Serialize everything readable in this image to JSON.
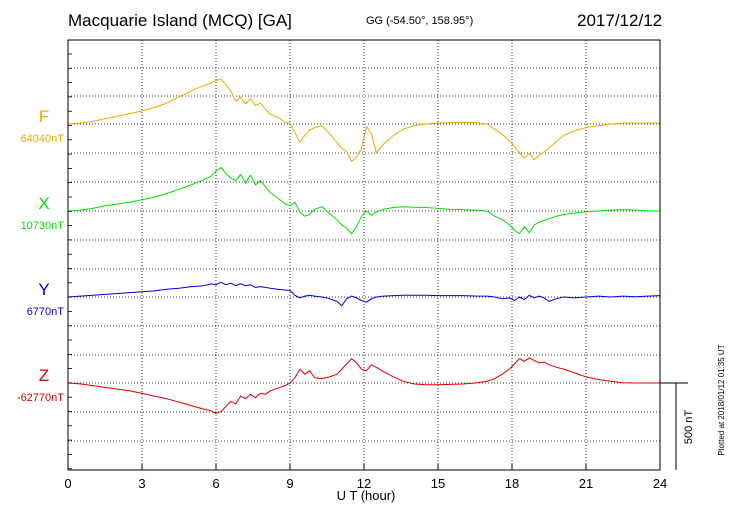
{
  "header": {
    "station": "Macquarie Island (MCQ)  [GA]",
    "coords": "GG (-54.50°, 158.95°)",
    "date": "2017/12/12"
  },
  "footer_note": "Plotted at 2018/01/12 01:35 UT",
  "scale_label": "500 nT",
  "chart_data": {
    "type": "line",
    "xlabel": "U T (hour)",
    "xlim": [
      0,
      24
    ],
    "xticks": [
      0,
      3,
      6,
      9,
      12,
      15,
      18,
      21,
      24
    ],
    "grid": true,
    "scale_bar_nT": 500,
    "series": [
      {
        "name": "F",
        "baseline_label": "64040nT",
        "baseline": 64040,
        "color": "#f0a800",
        "x": [
          0,
          0.5,
          1,
          1.5,
          2,
          2.5,
          3,
          3.5,
          4,
          4.5,
          5,
          5.5,
          5.8,
          6,
          6.2,
          6.4,
          6.6,
          6.8,
          7,
          7.2,
          7.4,
          7.6,
          7.8,
          8,
          8.2,
          8.5,
          8.8,
          9,
          9.2,
          9.4,
          9.6,
          9.8,
          10,
          10.3,
          10.6,
          10.9,
          11.1,
          11.3,
          11.5,
          11.7,
          11.9,
          12.1,
          12.3,
          12.5,
          12.8,
          13.2,
          13.6,
          14,
          14.5,
          15,
          15.5,
          16,
          16.5,
          17,
          17.3,
          17.6,
          17.9,
          18.1,
          18.3,
          18.5,
          18.7,
          18.9,
          19.1,
          19.3,
          19.5,
          19.8,
          20.1,
          20.5,
          21,
          21.5,
          22,
          22.5,
          23,
          23.5,
          24
        ],
        "y": [
          64040,
          64045,
          64055,
          64070,
          64085,
          64100,
          64115,
          64135,
          64160,
          64195,
          64230,
          64260,
          64275,
          64290,
          64300,
          64265,
          64230,
          64170,
          64195,
          64155,
          64185,
          64145,
          64160,
          64125,
          64095,
          64080,
          64050,
          64045,
          63990,
          63935,
          63975,
          64005,
          64020,
          64030,
          63985,
          63935,
          63900,
          63880,
          63825,
          63850,
          63900,
          64025,
          63985,
          63875,
          63925,
          63975,
          64010,
          64030,
          64040,
          64045,
          64048,
          64050,
          64048,
          64040,
          64010,
          63980,
          63945,
          63910,
          63875,
          63845,
          63870,
          63835,
          63860,
          63880,
          63900,
          63940,
          63975,
          64000,
          64020,
          64030,
          64040,
          64045,
          64045,
          64045,
          64045
        ]
      },
      {
        "name": "X",
        "baseline_label": "10730nT",
        "baseline": 10730,
        "color": "#00e000",
        "x": [
          0,
          0.5,
          1,
          1.5,
          2,
          2.5,
          3,
          3.5,
          4,
          4.5,
          5,
          5.5,
          5.8,
          6,
          6.2,
          6.4,
          6.6,
          6.8,
          7,
          7.2,
          7.4,
          7.6,
          7.8,
          8,
          8.2,
          8.5,
          8.8,
          9,
          9.2,
          9.4,
          9.6,
          9.8,
          10,
          10.3,
          10.6,
          10.9,
          11.1,
          11.3,
          11.5,
          11.7,
          11.9,
          12.1,
          12.3,
          12.5,
          12.8,
          13.2,
          13.6,
          14,
          14.5,
          15,
          15.5,
          16,
          16.5,
          17,
          17.3,
          17.6,
          17.9,
          18.1,
          18.3,
          18.5,
          18.7,
          18.9,
          19.1,
          19.3,
          19.5,
          19.8,
          20.1,
          20.5,
          21,
          21.5,
          22,
          22.5,
          23,
          23.5,
          24
        ],
        "y": [
          10730,
          10735,
          10745,
          10760,
          10770,
          10780,
          10795,
          10810,
          10830,
          10855,
          10880,
          10910,
          10930,
          10960,
          10980,
          10945,
          10920,
          10905,
          10940,
          10890,
          10935,
          10880,
          10905,
          10870,
          10835,
          10805,
          10770,
          10760,
          10780,
          10725,
          10700,
          10710,
          10740,
          10755,
          10715,
          10680,
          10650,
          10630,
          10600,
          10640,
          10700,
          10730,
          10705,
          10725,
          10740,
          10750,
          10755,
          10752,
          10750,
          10745,
          10740,
          10738,
          10735,
          10730,
          10700,
          10680,
          10650,
          10620,
          10600,
          10640,
          10605,
          10650,
          10665,
          10675,
          10685,
          10700,
          10710,
          10718,
          10725,
          10730,
          10735,
          10738,
          10735,
          10732,
          10730
        ]
      },
      {
        "name": "Y",
        "baseline_label": "6770nT",
        "baseline": 6770,
        "color": "#0000e0",
        "x": [
          0,
          0.5,
          1,
          1.5,
          2,
          2.5,
          3,
          3.5,
          4,
          4.5,
          5,
          5.5,
          5.8,
          6,
          6.2,
          6.4,
          6.6,
          6.8,
          7,
          7.2,
          7.4,
          7.6,
          7.8,
          8,
          8.2,
          8.5,
          8.8,
          9,
          9.2,
          9.4,
          9.6,
          9.8,
          10,
          10.3,
          10.6,
          10.9,
          11.1,
          11.3,
          11.5,
          11.7,
          11.9,
          12.1,
          12.3,
          12.5,
          12.8,
          13.2,
          13.6,
          14,
          14.5,
          15,
          15.5,
          16,
          16.5,
          17,
          17.3,
          17.6,
          17.9,
          18.1,
          18.3,
          18.5,
          18.7,
          18.9,
          19.1,
          19.3,
          19.5,
          19.8,
          20.1,
          20.5,
          21,
          21.5,
          22,
          22.5,
          23,
          23.5,
          24
        ],
        "y": [
          6770,
          6775,
          6780,
          6785,
          6790,
          6795,
          6800,
          6805,
          6815,
          6820,
          6830,
          6835,
          6845,
          6840,
          6855,
          6840,
          6850,
          6835,
          6845,
          6835,
          6840,
          6825,
          6830,
          6825,
          6820,
          6815,
          6810,
          6808,
          6780,
          6765,
          6775,
          6780,
          6775,
          6770,
          6760,
          6745,
          6720,
          6760,
          6775,
          6765,
          6750,
          6740,
          6760,
          6770,
          6775,
          6778,
          6780,
          6780,
          6780,
          6778,
          6778,
          6778,
          6776,
          6775,
          6770,
          6760,
          6765,
          6750,
          6770,
          6755,
          6780,
          6765,
          6775,
          6765,
          6745,
          6760,
          6770,
          6765,
          6770,
          6775,
          6770,
          6775,
          6772,
          6775,
          6778
        ]
      },
      {
        "name": "Z",
        "baseline_label": "-62770nT",
        "baseline": -62770,
        "color": "#e00000",
        "x": [
          0,
          0.5,
          1,
          1.5,
          2,
          2.5,
          3,
          3.5,
          4,
          4.5,
          5,
          5.5,
          5.8,
          6,
          6.2,
          6.4,
          6.6,
          6.8,
          7,
          7.2,
          7.4,
          7.6,
          7.8,
          8,
          8.2,
          8.5,
          8.8,
          9,
          9.2,
          9.4,
          9.6,
          9.8,
          10,
          10.3,
          10.6,
          10.9,
          11.1,
          11.3,
          11.5,
          11.7,
          11.9,
          12.1,
          12.3,
          12.5,
          12.8,
          13.2,
          13.6,
          14,
          14.5,
          15,
          15.5,
          16,
          16.5,
          17,
          17.3,
          17.6,
          17.9,
          18.1,
          18.3,
          18.5,
          18.7,
          18.9,
          19.1,
          19.3,
          19.5,
          19.8,
          20.1,
          20.5,
          21,
          21.5,
          22,
          22.5,
          23,
          23.5,
          24
        ],
        "y": [
          -62770,
          -62775,
          -62785,
          -62795,
          -62805,
          -62815,
          -62830,
          -62845,
          -62860,
          -62880,
          -62900,
          -62920,
          -62930,
          -62945,
          -62935,
          -62905,
          -62875,
          -62890,
          -62845,
          -62860,
          -62835,
          -62855,
          -62830,
          -62835,
          -62815,
          -62800,
          -62785,
          -62770,
          -62740,
          -62690,
          -62720,
          -62700,
          -62740,
          -62745,
          -62735,
          -62720,
          -62690,
          -62660,
          -62630,
          -62655,
          -62690,
          -62700,
          -62665,
          -62680,
          -62705,
          -62735,
          -62760,
          -62775,
          -62780,
          -62780,
          -62778,
          -62776,
          -62770,
          -62760,
          -62745,
          -62720,
          -62690,
          -62660,
          -62630,
          -62645,
          -62625,
          -62640,
          -62655,
          -62650,
          -62665,
          -62680,
          -62690,
          -62710,
          -62735,
          -62750,
          -62760,
          -62768,
          -62770,
          -62770,
          -62770
        ]
      }
    ]
  }
}
